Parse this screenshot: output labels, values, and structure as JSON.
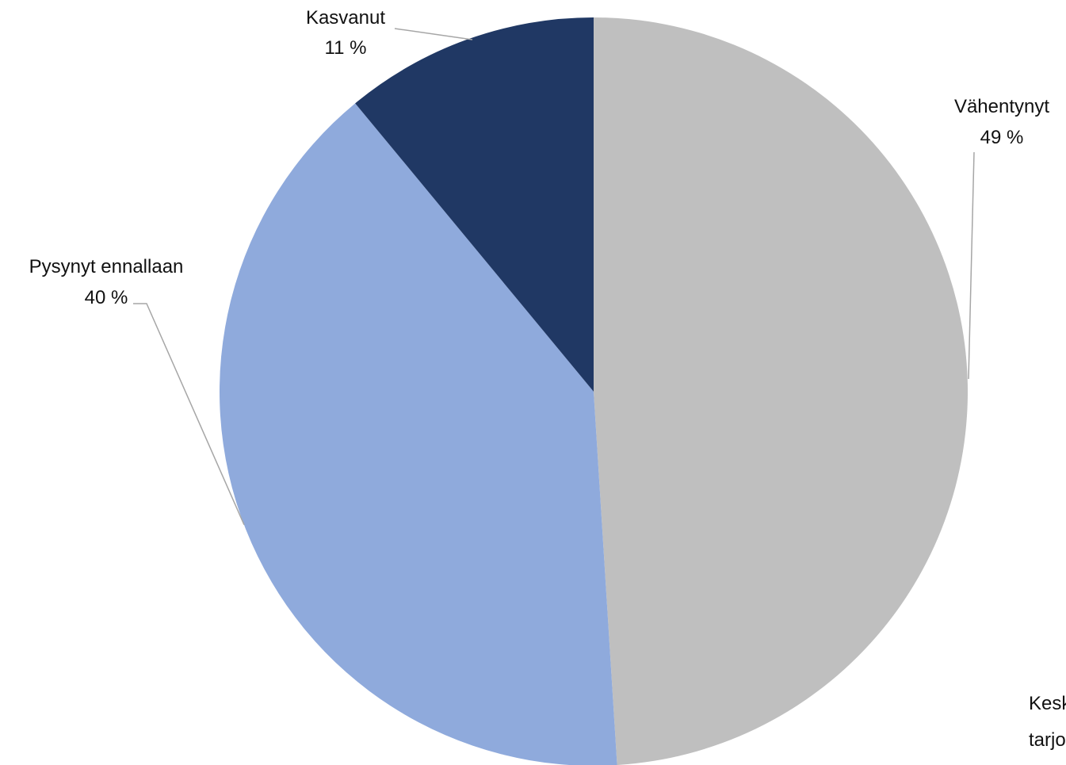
{
  "chart_data": {
    "type": "pie",
    "start_angle_deg": 0,
    "direction": "clockwise",
    "slices": [
      {
        "label": "Vähentynyt",
        "value": 49,
        "display": "49 %",
        "color": "#bfbfbf"
      },
      {
        "label": "Pysynyt ennallaan",
        "value": 40,
        "display": "40 %",
        "color": "#8faadc"
      },
      {
        "label": "Kasvanut",
        "value": 11,
        "display": "11 %",
        "color": "#203864"
      }
    ]
  },
  "cut_off_text": {
    "line1": "Kesk",
    "line2": "tarjo"
  }
}
